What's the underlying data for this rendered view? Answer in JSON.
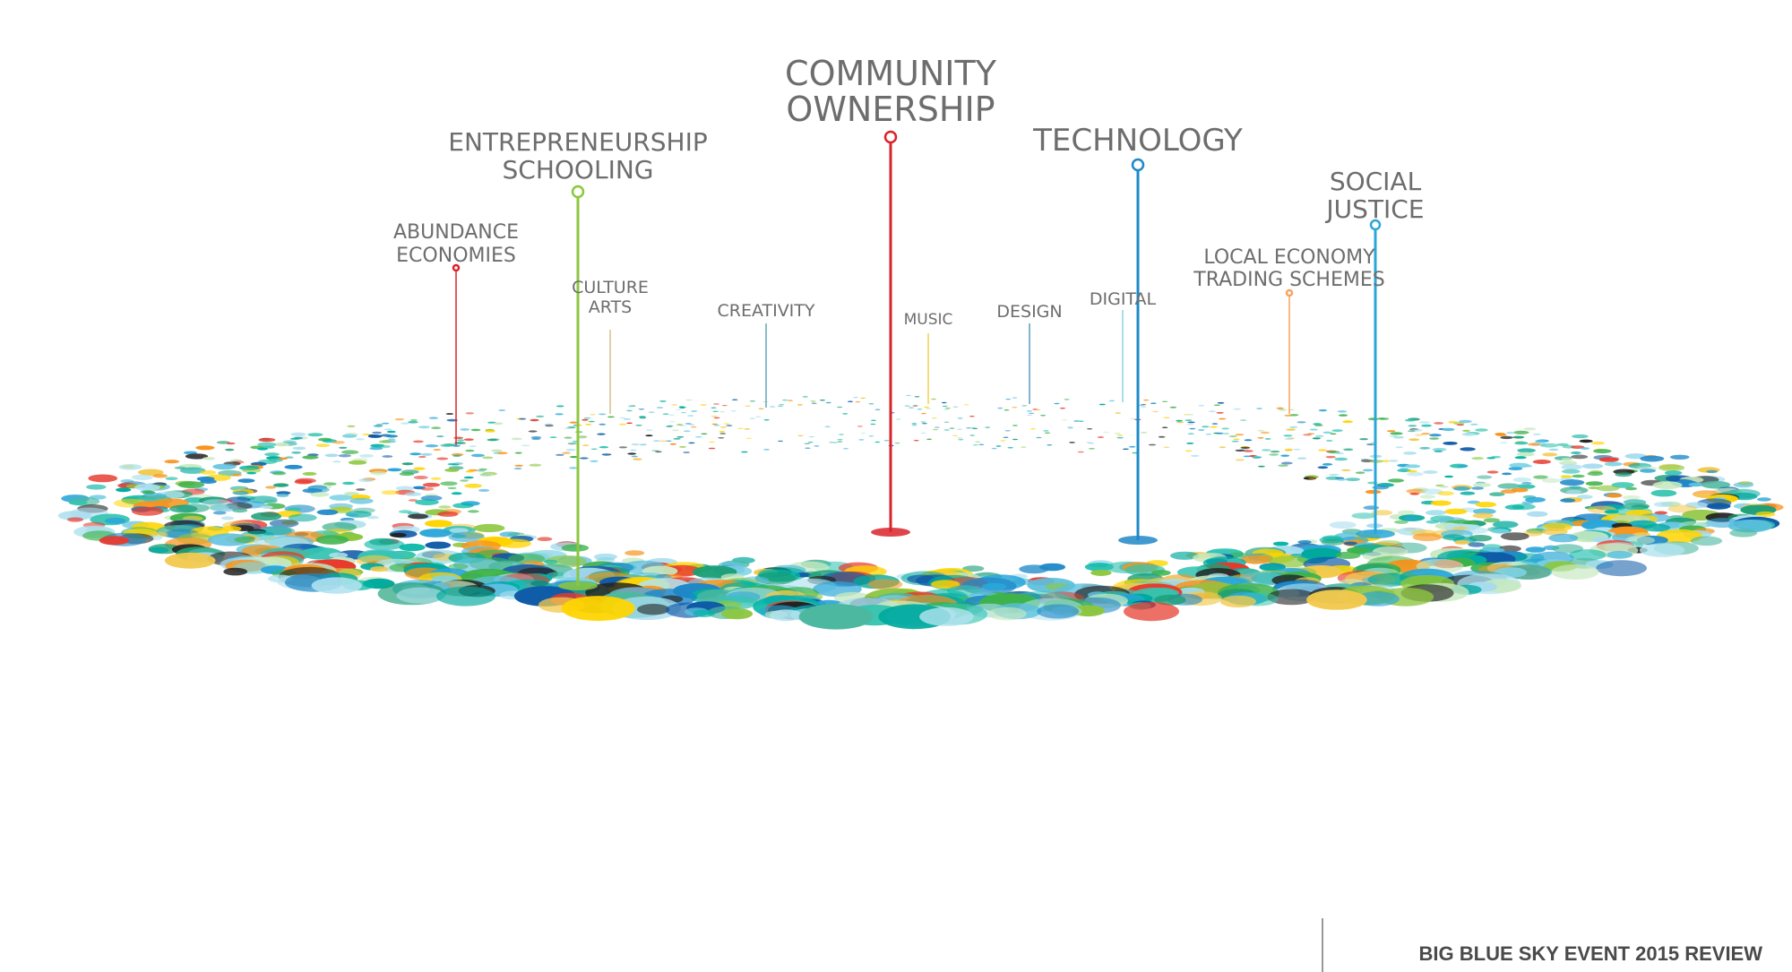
{
  "labels": [
    {
      "lines": [
        "COMMUNITY",
        "OWNERSHIP"
      ]
    },
    {
      "lines": [
        "ENTREPRENEURSHIP",
        "SCHOOLING"
      ]
    },
    {
      "lines": [
        "TECHNOLOGY"
      ]
    },
    {
      "lines": [
        "SOCIAL",
        "JUSTICE"
      ]
    },
    {
      "lines": [
        "ABUNDANCE",
        "ECONOMIES"
      ]
    },
    {
      "lines": [
        "LOCAL ECONOMY",
        "TRADING SCHEMES"
      ]
    },
    {
      "lines": [
        "CULTURE",
        "ARTS"
      ]
    },
    {
      "lines": [
        "CREATIVITY"
      ]
    },
    {
      "lines": [
        "MUSIC"
      ]
    },
    {
      "lines": [
        "DESIGN"
      ]
    },
    {
      "lines": [
        "DIGITAL"
      ]
    }
  ],
  "footer": "BIG BLUE SKY EVENT 2015 REVIEW"
}
